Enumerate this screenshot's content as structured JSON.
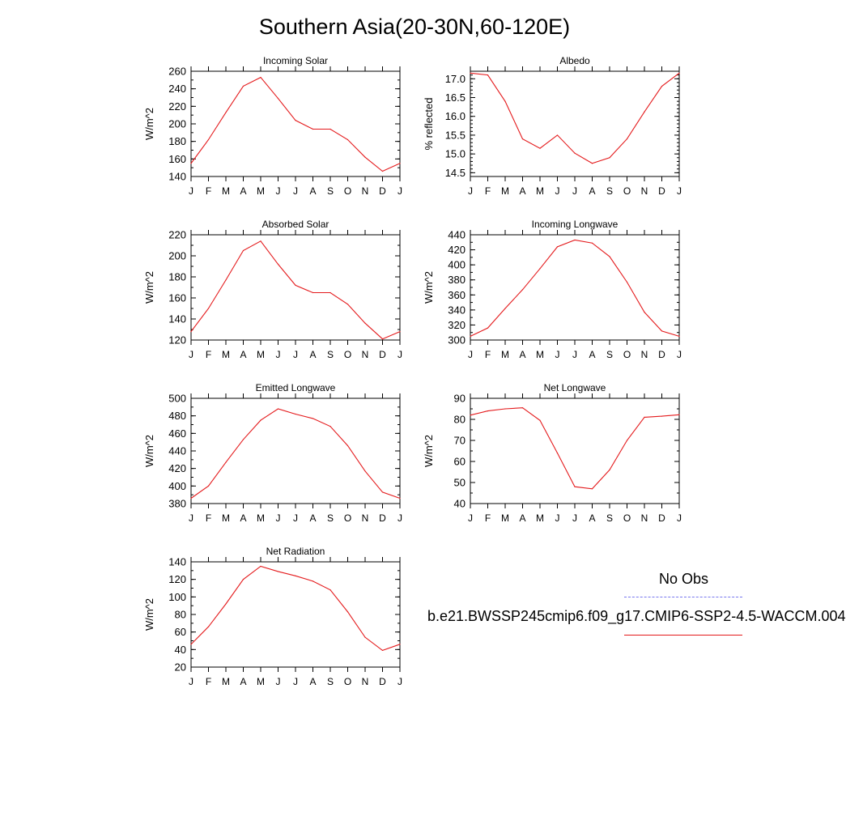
{
  "title": "Southern Asia(20-30N,60-120E)",
  "months": [
    "J",
    "F",
    "M",
    "A",
    "M",
    "J",
    "J",
    "A",
    "S",
    "O",
    "N",
    "D",
    "J"
  ],
  "legend": {
    "obs_label": "No Obs",
    "obs_color": "#7777ee",
    "model_label": "b.e21.BWSSP245cmip6.f09_g17.CMIP6-SSP2-4.5-WACCM.004",
    "model_color": "#e41a1c"
  },
  "chart_data": [
    {
      "type": "line",
      "title": "Incoming Solar",
      "ylabel": "W/m^2",
      "ylim": [
        140,
        260
      ],
      "yticks": [
        140,
        160,
        180,
        200,
        220,
        240,
        260
      ],
      "ytick_labels": [
        "140",
        "160",
        "180",
        "200",
        "220",
        "240",
        "260"
      ],
      "yminor": 10,
      "categories": [
        "J",
        "F",
        "M",
        "A",
        "M",
        "J",
        "J",
        "A",
        "S",
        "O",
        "N",
        "D",
        "J"
      ],
      "series": [
        {
          "values": [
            155,
            182,
            213,
            243,
            253,
            229,
            204,
            194,
            194,
            182,
            162,
            146,
            155
          ]
        }
      ]
    },
    {
      "type": "line",
      "title": "Albedo",
      "ylabel": "% reflected",
      "ylim": [
        14.4,
        17.2
      ],
      "yticks": [
        14.5,
        15.0,
        15.5,
        16.0,
        16.5,
        17.0
      ],
      "ytick_labels": [
        "14.5",
        "15.0",
        "15.5",
        "16.0",
        "16.5",
        "17.0"
      ],
      "yminor": 0.1,
      "categories": [
        "J",
        "F",
        "M",
        "A",
        "M",
        "J",
        "J",
        "A",
        "S",
        "O",
        "N",
        "D",
        "J"
      ],
      "series": [
        {
          "values": [
            17.15,
            17.1,
            16.4,
            15.4,
            15.15,
            15.5,
            15.02,
            14.75,
            14.9,
            15.4,
            16.12,
            16.8,
            17.15
          ]
        }
      ]
    },
    {
      "type": "line",
      "title": "Absorbed Solar",
      "ylabel": "W/m^2",
      "ylim": [
        120,
        220
      ],
      "yticks": [
        120,
        140,
        160,
        180,
        200,
        220
      ],
      "ytick_labels": [
        "120",
        "140",
        "160",
        "180",
        "200",
        "220"
      ],
      "yminor": 10,
      "categories": [
        "J",
        "F",
        "M",
        "A",
        "M",
        "J",
        "J",
        "A",
        "S",
        "O",
        "N",
        "D",
        "J"
      ],
      "series": [
        {
          "values": [
            128,
            150,
            177,
            205,
            214,
            192,
            172,
            165,
            165,
            154,
            136,
            121,
            128
          ]
        }
      ]
    },
    {
      "type": "line",
      "title": "Incoming Longwave",
      "ylabel": "W/m^2",
      "ylim": [
        300,
        440
      ],
      "yticks": [
        300,
        320,
        340,
        360,
        380,
        400,
        420,
        440
      ],
      "ytick_labels": [
        "300",
        "320",
        "340",
        "360",
        "380",
        "400",
        "420",
        "440"
      ],
      "yminor": 10,
      "categories": [
        "J",
        "F",
        "M",
        "A",
        "M",
        "J",
        "J",
        "A",
        "S",
        "O",
        "N",
        "D",
        "J"
      ],
      "series": [
        {
          "values": [
            305,
            316,
            342,
            367,
            395,
            424,
            433,
            429,
            411,
            377,
            337,
            312,
            305
          ]
        }
      ]
    },
    {
      "type": "line",
      "title": "Emitted Longwave",
      "ylabel": "W/m^2",
      "ylim": [
        380,
        500
      ],
      "yticks": [
        380,
        400,
        420,
        440,
        460,
        480,
        500
      ],
      "ytick_labels": [
        "380",
        "400",
        "420",
        "440",
        "460",
        "480",
        "500"
      ],
      "yminor": 10,
      "categories": [
        "J",
        "F",
        "M",
        "A",
        "M",
        "J",
        "J",
        "A",
        "S",
        "O",
        "N",
        "D",
        "J"
      ],
      "series": [
        {
          "values": [
            386,
            400,
            427,
            453,
            475,
            488,
            482,
            477,
            468,
            446,
            417,
            393,
            386
          ]
        }
      ]
    },
    {
      "type": "line",
      "title": "Net Longwave",
      "ylabel": "W/m^2",
      "ylim": [
        40,
        90
      ],
      "yticks": [
        40,
        50,
        60,
        70,
        80,
        90
      ],
      "ytick_labels": [
        "40",
        "50",
        "60",
        "70",
        "80",
        "90"
      ],
      "yminor": 5,
      "categories": [
        "J",
        "F",
        "M",
        "A",
        "M",
        "J",
        "J",
        "A",
        "S",
        "O",
        "N",
        "D",
        "J"
      ],
      "series": [
        {
          "values": [
            82,
            84,
            85,
            85.5,
            79.5,
            64,
            48,
            47,
            56,
            70,
            81,
            81.5,
            82.2
          ]
        }
      ]
    },
    {
      "type": "line",
      "title": "Net Radiation",
      "ylabel": "W/m^2",
      "ylim": [
        20,
        140
      ],
      "yticks": [
        20,
        40,
        60,
        80,
        100,
        120,
        140
      ],
      "ytick_labels": [
        "20",
        "40",
        "60",
        "80",
        "100",
        "120",
        "140"
      ],
      "yminor": 10,
      "categories": [
        "J",
        "F",
        "M",
        "A",
        "M",
        "J",
        "J",
        "A",
        "S",
        "O",
        "N",
        "D",
        "J"
      ],
      "series": [
        {
          "values": [
            46,
            66,
            92,
            120,
            135,
            129,
            124,
            118,
            108,
            83,
            54,
            39,
            46
          ]
        }
      ]
    }
  ]
}
